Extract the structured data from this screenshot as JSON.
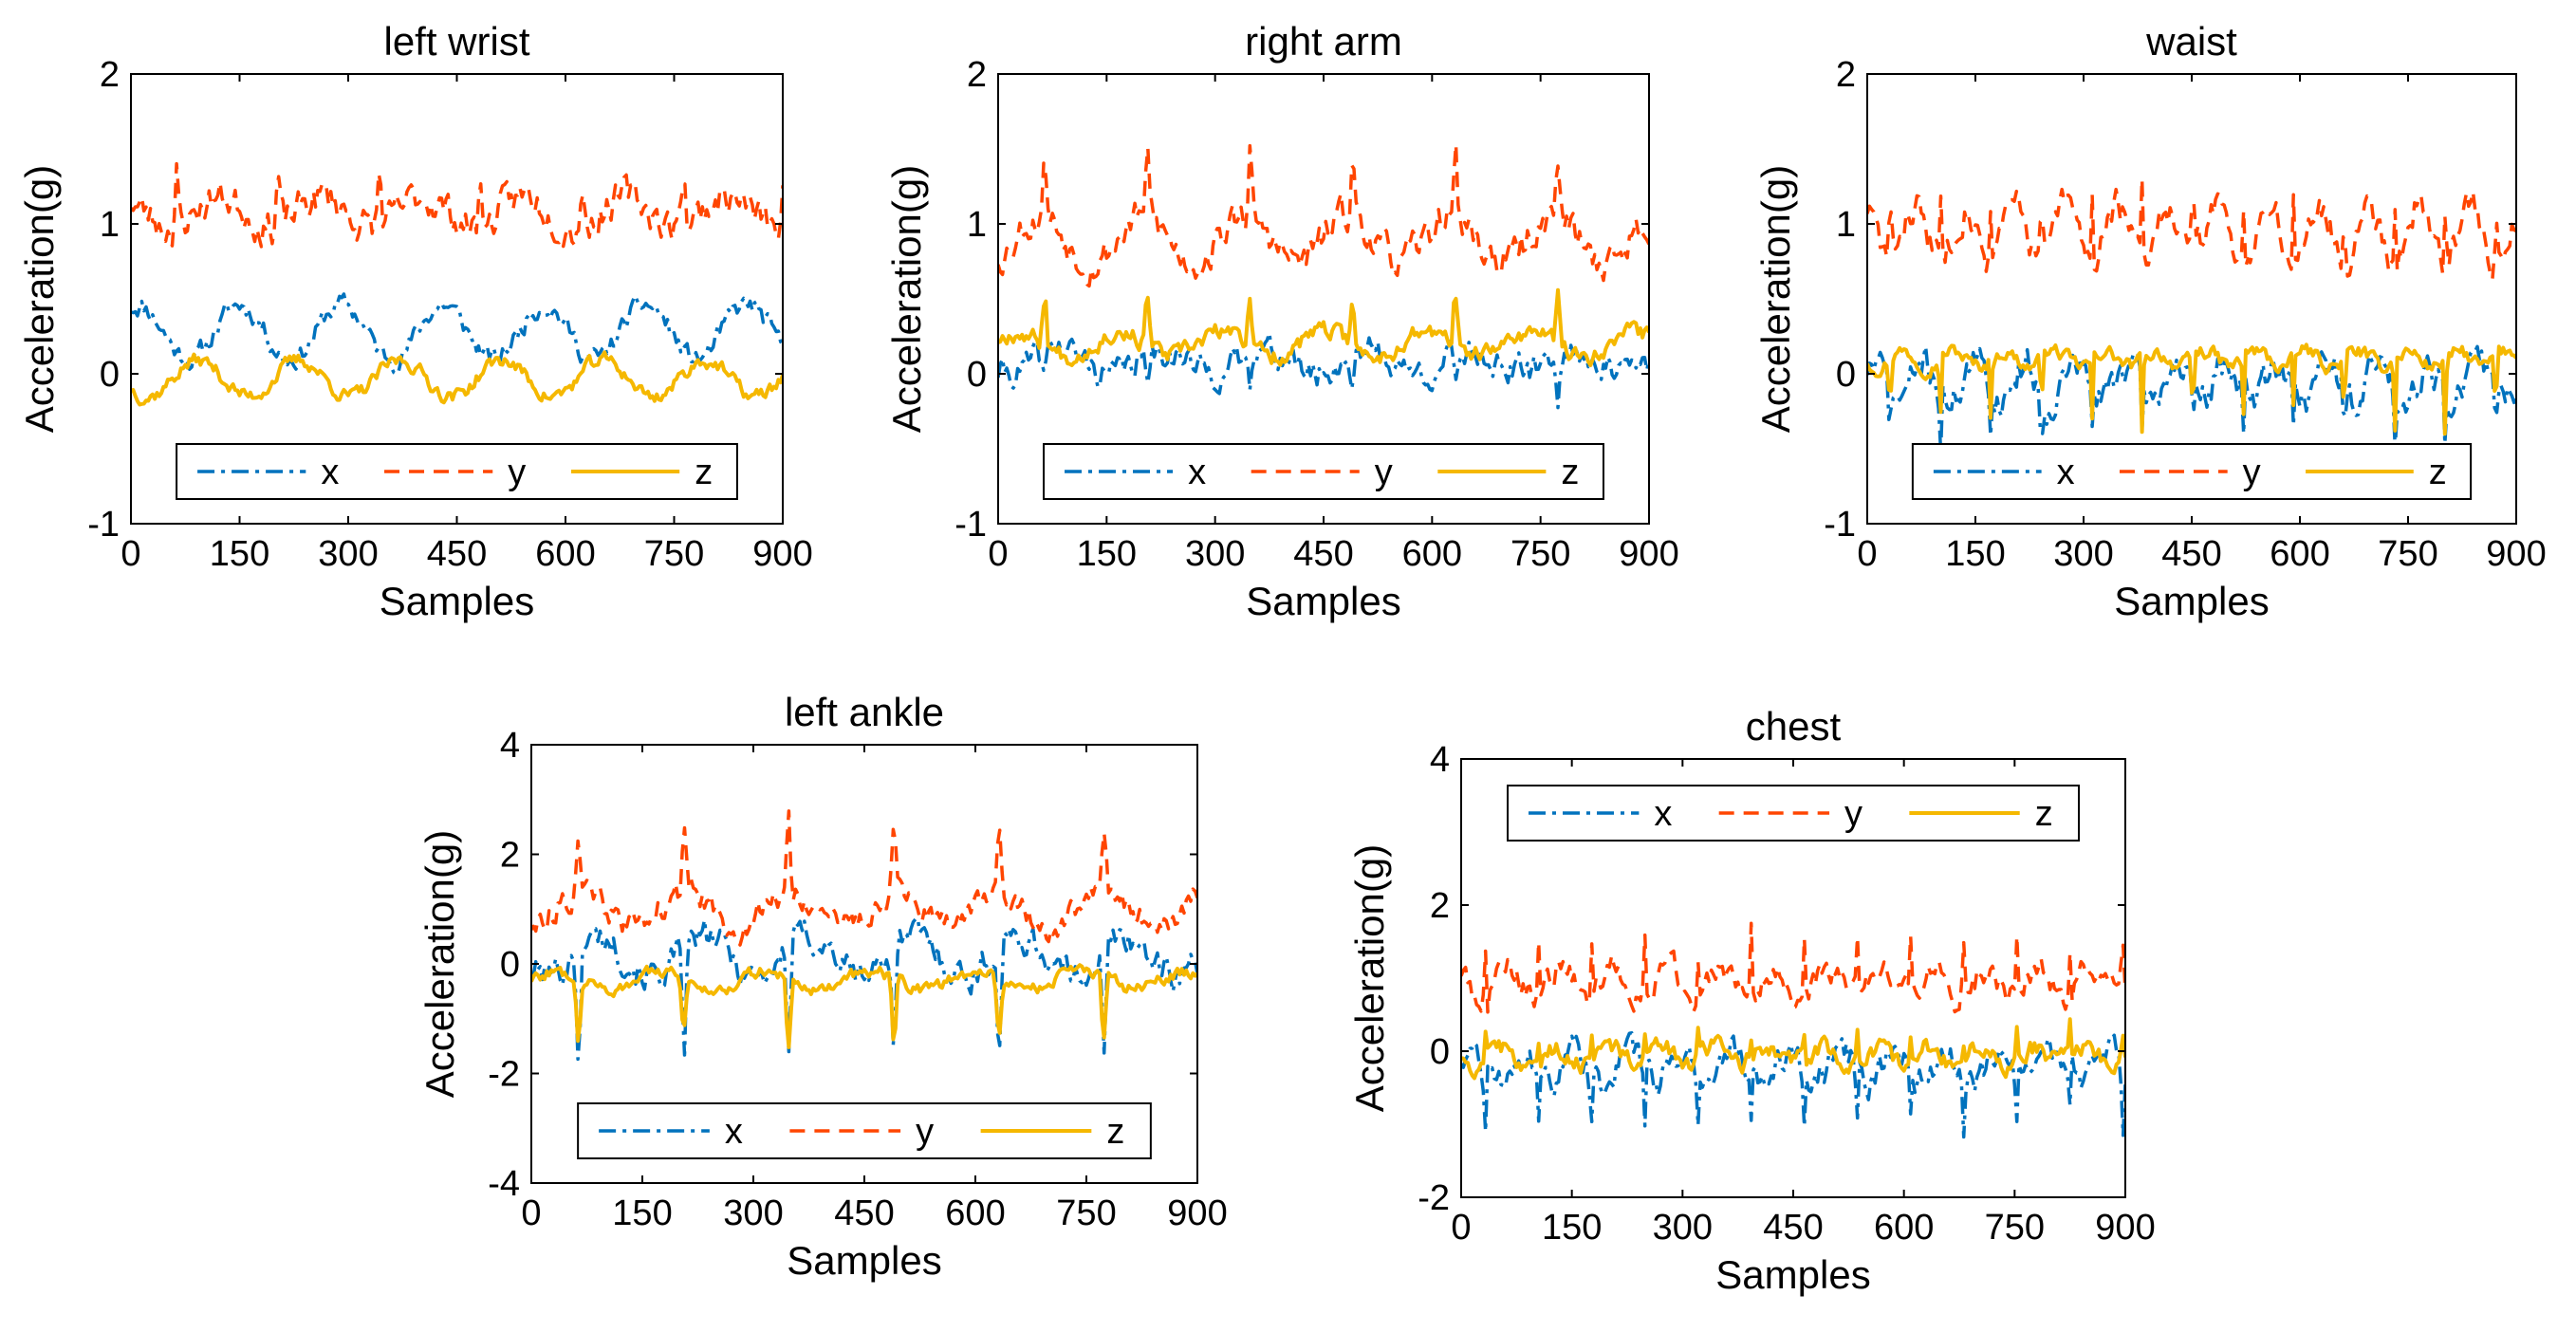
{
  "colors": {
    "x": "#0072BD",
    "y": "#FF4500",
    "z": "#F5B800",
    "axis": "#000000"
  },
  "chart_data": [
    {
      "type": "line",
      "title": "left wrist",
      "xlabel": "Samples",
      "ylabel": "Acceleration(g)",
      "xlim": [
        0,
        900
      ],
      "ylim": [
        -1,
        2
      ],
      "xticks": [
        "0",
        "150",
        "300",
        "450",
        "600",
        "750",
        "900"
      ],
      "yticks": [
        "-1",
        "0",
        "1",
        "2"
      ],
      "legend": {
        "placement": "bottom-inside",
        "labels": [
          "x",
          "y",
          "z"
        ]
      },
      "series": [
        {
          "name": "x",
          "style": "dash-dot",
          "base": 0.28,
          "amp": 0.18,
          "period": 140,
          "noise": 0.07,
          "spike": 0.0,
          "seed": 11
        },
        {
          "name": "y",
          "style": "dashed",
          "base": 1.08,
          "amp": 0.1,
          "period": 140,
          "noise": 0.12,
          "spike": 0.42,
          "seed": 23
        },
        {
          "name": "z",
          "style": "solid",
          "base": -0.03,
          "amp": 0.12,
          "period": 140,
          "noise": 0.05,
          "spike": 0.0,
          "seed": 37
        }
      ]
    },
    {
      "type": "line",
      "title": "right arm",
      "xlabel": "Samples",
      "ylabel": "Acceleration(g)",
      "xlim": [
        0,
        900
      ],
      "ylim": [
        -1,
        2
      ],
      "xticks": [
        "0",
        "150",
        "300",
        "450",
        "600",
        "750",
        "900"
      ],
      "yticks": [
        "-1",
        "0",
        "1",
        "2"
      ],
      "legend": {
        "placement": "bottom-inside",
        "labels": [
          "x",
          "y",
          "z"
        ]
      },
      "series": [
        {
          "name": "x",
          "style": "dash-dot",
          "base": 0.08,
          "amp": 0.08,
          "period": 142,
          "noise": 0.1,
          "spike": -0.3,
          "seed": 41
        },
        {
          "name": "y",
          "style": "dashed",
          "base": 0.9,
          "amp": 0.15,
          "period": 142,
          "noise": 0.12,
          "spike": 0.55,
          "seed": 53
        },
        {
          "name": "z",
          "style": "solid",
          "base": 0.2,
          "amp": 0.08,
          "period": 142,
          "noise": 0.06,
          "spike": 0.45,
          "seed": 67
        }
      ]
    },
    {
      "type": "line",
      "title": "waist",
      "xlabel": "Samples",
      "ylabel": "Acceleration(g)",
      "xlim": [
        0,
        900
      ],
      "ylim": [
        -1,
        2
      ],
      "xticks": [
        "0",
        "150",
        "300",
        "450",
        "600",
        "750",
        "900"
      ],
      "yticks": [
        "-1",
        "0",
        "1",
        "2"
      ],
      "legend": {
        "placement": "bottom-inside",
        "labels": [
          "x",
          "y",
          "z"
        ]
      },
      "series": [
        {
          "name": "x",
          "style": "dash-dot",
          "base": -0.05,
          "amp": 0.12,
          "period": 70,
          "noise": 0.12,
          "spike": -0.45,
          "seed": 71
        },
        {
          "name": "y",
          "style": "dashed",
          "base": 0.95,
          "amp": 0.18,
          "period": 70,
          "noise": 0.12,
          "spike": 0.6,
          "seed": 83
        },
        {
          "name": "z",
          "style": "solid",
          "base": 0.1,
          "amp": 0.05,
          "period": 70,
          "noise": 0.05,
          "spike": -0.6,
          "seed": 97
        }
      ]
    },
    {
      "type": "line",
      "title": "left ankle",
      "xlabel": "Samples",
      "ylabel": "Acceleration(g)",
      "xlim": [
        0,
        900
      ],
      "ylim": [
        -4,
        4
      ],
      "xticks": [
        "0",
        "150",
        "300",
        "450",
        "600",
        "750",
        "900"
      ],
      "yticks": [
        "-4",
        "-2",
        "0",
        "2",
        "4"
      ],
      "legend": {
        "placement": "bottom-inside",
        "labels": [
          "x",
          "y",
          "z"
        ]
      },
      "series": [
        {
          "name": "x",
          "style": "dash-dot",
          "base": 0.15,
          "amp": 0.35,
          "period": 142,
          "noise": 0.3,
          "spike": -2.4,
          "seed": 101
        },
        {
          "name": "y",
          "style": "dashed",
          "base": 1.0,
          "amp": 0.3,
          "period": 142,
          "noise": 0.25,
          "spike": 1.6,
          "seed": 113
        },
        {
          "name": "z",
          "style": "solid",
          "base": -0.3,
          "amp": 0.15,
          "period": 142,
          "noise": 0.12,
          "spike": -1.6,
          "seed": 127
        }
      ]
    },
    {
      "type": "line",
      "title": "chest",
      "xlabel": "Samples",
      "ylabel": "Acceleration(g)",
      "xlim": [
        0,
        900
      ],
      "ylim": [
        -2,
        4
      ],
      "xticks": [
        "0",
        "150",
        "300",
        "450",
        "600",
        "750",
        "900"
      ],
      "yticks": [
        "-2",
        "0",
        "2",
        "4"
      ],
      "legend": {
        "placement": "top-inside",
        "labels": [
          "x",
          "y",
          "z"
        ]
      },
      "series": [
        {
          "name": "x",
          "style": "dash-dot",
          "base": -0.2,
          "amp": 0.2,
          "period": 72,
          "noise": 0.22,
          "spike": -1.1,
          "seed": 131
        },
        {
          "name": "y",
          "style": "dashed",
          "base": 0.95,
          "amp": 0.2,
          "period": 72,
          "noise": 0.2,
          "spike": 1.1,
          "seed": 149
        },
        {
          "name": "z",
          "style": "solid",
          "base": -0.05,
          "amp": 0.1,
          "period": 72,
          "noise": 0.14,
          "spike": 0.5,
          "seed": 157
        }
      ]
    }
  ]
}
